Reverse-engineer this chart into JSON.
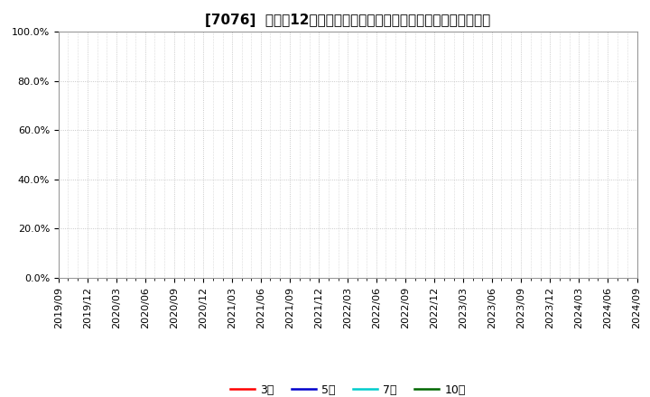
{
  "title": "[7076]  売上高12か月移動合計の対前年同期増減率の平均値の推移",
  "ylim": [
    0.0,
    1.0
  ],
  "yticks": [
    0.0,
    0.2,
    0.4,
    0.6,
    0.8,
    1.0
  ],
  "yticklabels": [
    "0.0%",
    "20.0%",
    "40.0%",
    "60.0%",
    "80.0%",
    "100.0%"
  ],
  "xstart": "2019-09-01",
  "xend": "2024-09-01",
  "xtick_dates": [
    "2019-09-01",
    "2019-12-01",
    "2020-03-01",
    "2020-06-01",
    "2020-09-01",
    "2020-12-01",
    "2021-03-01",
    "2021-06-01",
    "2021-09-01",
    "2021-12-01",
    "2022-03-01",
    "2022-06-01",
    "2022-09-01",
    "2022-12-01",
    "2023-03-01",
    "2023-06-01",
    "2023-09-01",
    "2023-12-01",
    "2024-03-01",
    "2024-06-01",
    "2024-09-01"
  ],
  "xtick_labels": [
    "2019/09",
    "2019/12",
    "2020/03",
    "2020/06",
    "2020/09",
    "2020/12",
    "2021/03",
    "2021/06",
    "2021/09",
    "2021/12",
    "2022/03",
    "2022/06",
    "2022/09",
    "2022/12",
    "2023/03",
    "2023/06",
    "2023/09",
    "2023/12",
    "2024/03",
    "2024/06",
    "2024/09"
  ],
  "legend_entries": [
    {
      "label": "3年",
      "color": "#ff0000",
      "linewidth": 1.8
    },
    {
      "label": "5年",
      "color": "#0000cc",
      "linewidth": 1.8
    },
    {
      "label": "7年",
      "color": "#00cccc",
      "linewidth": 1.8
    },
    {
      "label": "10年",
      "color": "#006600",
      "linewidth": 1.8
    }
  ],
  "grid_color": "#bbbbbb",
  "grid_linestyle": ":",
  "background_color": "#ffffff",
  "plot_bg_color": "#ffffff",
  "title_fontsize": 11,
  "tick_fontsize": 8,
  "legend_fontsize": 9
}
